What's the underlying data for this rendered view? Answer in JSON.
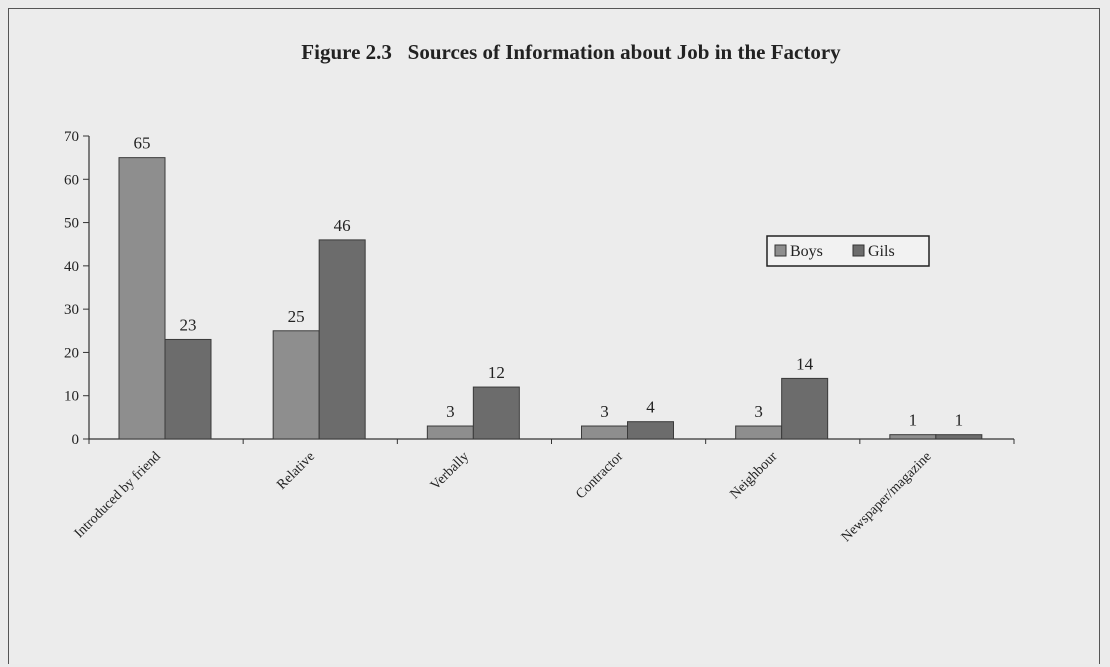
{
  "chart_data": {
    "type": "bar",
    "title": "Figure 2.3   Sources of Information about Job in the Factory",
    "categories": [
      "Introduced by friend",
      "Relative",
      "Verbally",
      "Contractor",
      "Neighbour",
      "Newspaper/magazine"
    ],
    "series": [
      {
        "name": "Boys",
        "values": [
          65,
          25,
          3,
          3,
          3,
          1
        ],
        "color": "#8e8e8e"
      },
      {
        "name": "Gils",
        "values": [
          23,
          46,
          12,
          4,
          14,
          1
        ],
        "color": "#6c6c6c"
      }
    ],
    "ylim": [
      0,
      70
    ],
    "yticks": [
      0,
      10,
      20,
      30,
      40,
      50,
      60,
      70
    ],
    "grid": false,
    "legend_position": "right"
  }
}
